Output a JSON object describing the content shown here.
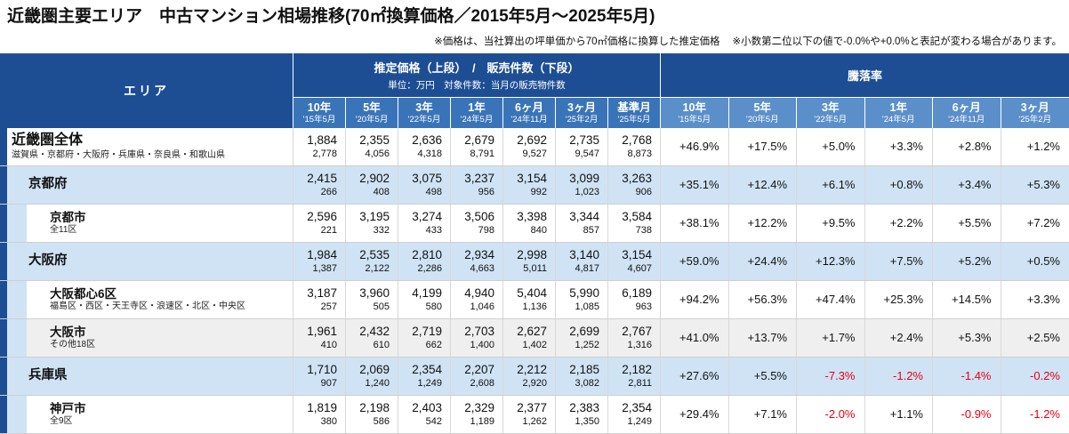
{
  "page": {
    "title": "近畿圏主要エリア　中古マンション相場推移(70㎡換算価格／2015年5月～2025年5月)",
    "notes": [
      "※価格は、当社算出の坪単価から70㎡価格に換算した推定価格",
      "※小数第二位以下の値で-0.0%や+0.0%と表記が変わる場合があります。"
    ]
  },
  "colors": {
    "header_navy": "#1d4e94",
    "subheader_price": "#3a74b8",
    "subheader_rate": "#5b8fca",
    "row_blue": "#cfe3f5",
    "row_gray": "#efefef",
    "negative": "#e60012"
  },
  "chart_data": {
    "type": "table",
    "title": "近畿圏主要エリア　中古マンション相場推移(70㎡換算価格／2015年5月～2025年5月)",
    "area_header": "エリア",
    "price_group_title": "推定価格（上段）　/　販売件数（下段）",
    "price_group_subtitle": "単位：万円　対象件数：当月の販売物件数",
    "rate_group_title": "騰落率",
    "price_columns": [
      {
        "period": "10年",
        "date": "'15年5月"
      },
      {
        "period": "5年",
        "date": "'20年5月"
      },
      {
        "period": "3年",
        "date": "'22年5月"
      },
      {
        "period": "1年",
        "date": "'24年5月"
      },
      {
        "period": "6ヶ月",
        "date": "'24年11月"
      },
      {
        "period": "3ヶ月",
        "date": "'25年2月"
      },
      {
        "period": "基準月",
        "date": "'25年5月"
      }
    ],
    "rate_columns": [
      {
        "period": "10年",
        "date": "'15年5月"
      },
      {
        "period": "5年",
        "date": "'20年5月"
      },
      {
        "period": "3年",
        "date": "'22年5月"
      },
      {
        "period": "1年",
        "date": "'24年5月"
      },
      {
        "period": "6ヶ月",
        "date": "'24年11月"
      },
      {
        "period": "3ヶ月",
        "date": "'25年2月"
      }
    ],
    "rows": [
      {
        "name": "近畿圏全体",
        "subtitle": "滋賀県・京都府・大阪府・兵庫県・奈良県・和歌山県",
        "level": 0,
        "highlight": "white",
        "prices": [
          "1,884",
          "2,355",
          "2,636",
          "2,679",
          "2,692",
          "2,735",
          "2,768"
        ],
        "counts": [
          "2,778",
          "4,056",
          "4,318",
          "8,791",
          "9,527",
          "9,547",
          "8,873"
        ],
        "rates": [
          "+46.9%",
          "+17.5%",
          "+5.0%",
          "+3.3%",
          "+2.8%",
          "+1.2%"
        ]
      },
      {
        "name": "京都府",
        "subtitle": "",
        "level": 1,
        "highlight": "blue",
        "prices": [
          "2,415",
          "2,902",
          "3,075",
          "3,237",
          "3,154",
          "3,099",
          "3,263"
        ],
        "counts": [
          "266",
          "408",
          "498",
          "956",
          "992",
          "1,023",
          "906"
        ],
        "rates": [
          "+35.1%",
          "+12.4%",
          "+6.1%",
          "+0.8%",
          "+3.4%",
          "+5.3%"
        ]
      },
      {
        "name": "京都市",
        "subtitle": "全11区",
        "level": 2,
        "highlight": "white",
        "prices": [
          "2,596",
          "3,195",
          "3,274",
          "3,506",
          "3,398",
          "3,344",
          "3,584"
        ],
        "counts": [
          "221",
          "332",
          "433",
          "798",
          "840",
          "857",
          "738"
        ],
        "rates": [
          "+38.1%",
          "+12.2%",
          "+9.5%",
          "+2.2%",
          "+5.5%",
          "+7.2%"
        ]
      },
      {
        "name": "大阪府",
        "subtitle": "",
        "level": 1,
        "highlight": "blue",
        "prices": [
          "1,984",
          "2,535",
          "2,810",
          "2,934",
          "2,998",
          "3,140",
          "3,154"
        ],
        "counts": [
          "1,387",
          "2,122",
          "2,286",
          "4,663",
          "5,011",
          "4,817",
          "4,607"
        ],
        "rates": [
          "+59.0%",
          "+24.4%",
          "+12.3%",
          "+7.5%",
          "+5.2%",
          "+0.5%"
        ]
      },
      {
        "name": "大阪都心6区",
        "subtitle": "福島区・西区・天王寺区・浪速区・北区・中央区",
        "level": 2,
        "highlight": "white",
        "prices": [
          "3,187",
          "3,960",
          "4,199",
          "4,940",
          "5,404",
          "5,990",
          "6,189"
        ],
        "counts": [
          "257",
          "505",
          "580",
          "1,046",
          "1,136",
          "1,085",
          "963"
        ],
        "rates": [
          "+94.2%",
          "+56.3%",
          "+47.4%",
          "+25.3%",
          "+14.5%",
          "+3.3%"
        ]
      },
      {
        "name": "大阪市",
        "subtitle": "その他18区",
        "level": 2,
        "highlight": "gray",
        "prices": [
          "1,961",
          "2,432",
          "2,719",
          "2,703",
          "2,627",
          "2,699",
          "2,767"
        ],
        "counts": [
          "410",
          "610",
          "662",
          "1,400",
          "1,402",
          "1,252",
          "1,316"
        ],
        "rates": [
          "+41.0%",
          "+13.7%",
          "+1.7%",
          "+2.4%",
          "+5.3%",
          "+2.5%"
        ]
      },
      {
        "name": "兵庫県",
        "subtitle": "",
        "level": 1,
        "highlight": "blue",
        "prices": [
          "1,710",
          "2,069",
          "2,354",
          "2,207",
          "2,212",
          "2,185",
          "2,182"
        ],
        "counts": [
          "907",
          "1,240",
          "1,249",
          "2,608",
          "2,920",
          "3,082",
          "2,811"
        ],
        "rates": [
          "+27.6%",
          "+5.5%",
          "-7.3%",
          "-1.2%",
          "-1.4%",
          "-0.2%"
        ]
      },
      {
        "name": "神戸市",
        "subtitle": "全9区",
        "level": 2,
        "highlight": "white",
        "prices": [
          "1,819",
          "2,198",
          "2,403",
          "2,329",
          "2,377",
          "2,383",
          "2,354"
        ],
        "counts": [
          "380",
          "586",
          "542",
          "1,189",
          "1,262",
          "1,350",
          "1,249"
        ],
        "rates": [
          "+29.4%",
          "+7.1%",
          "-2.0%",
          "+1.1%",
          "-0.9%",
          "-1.2%"
        ]
      }
    ]
  }
}
